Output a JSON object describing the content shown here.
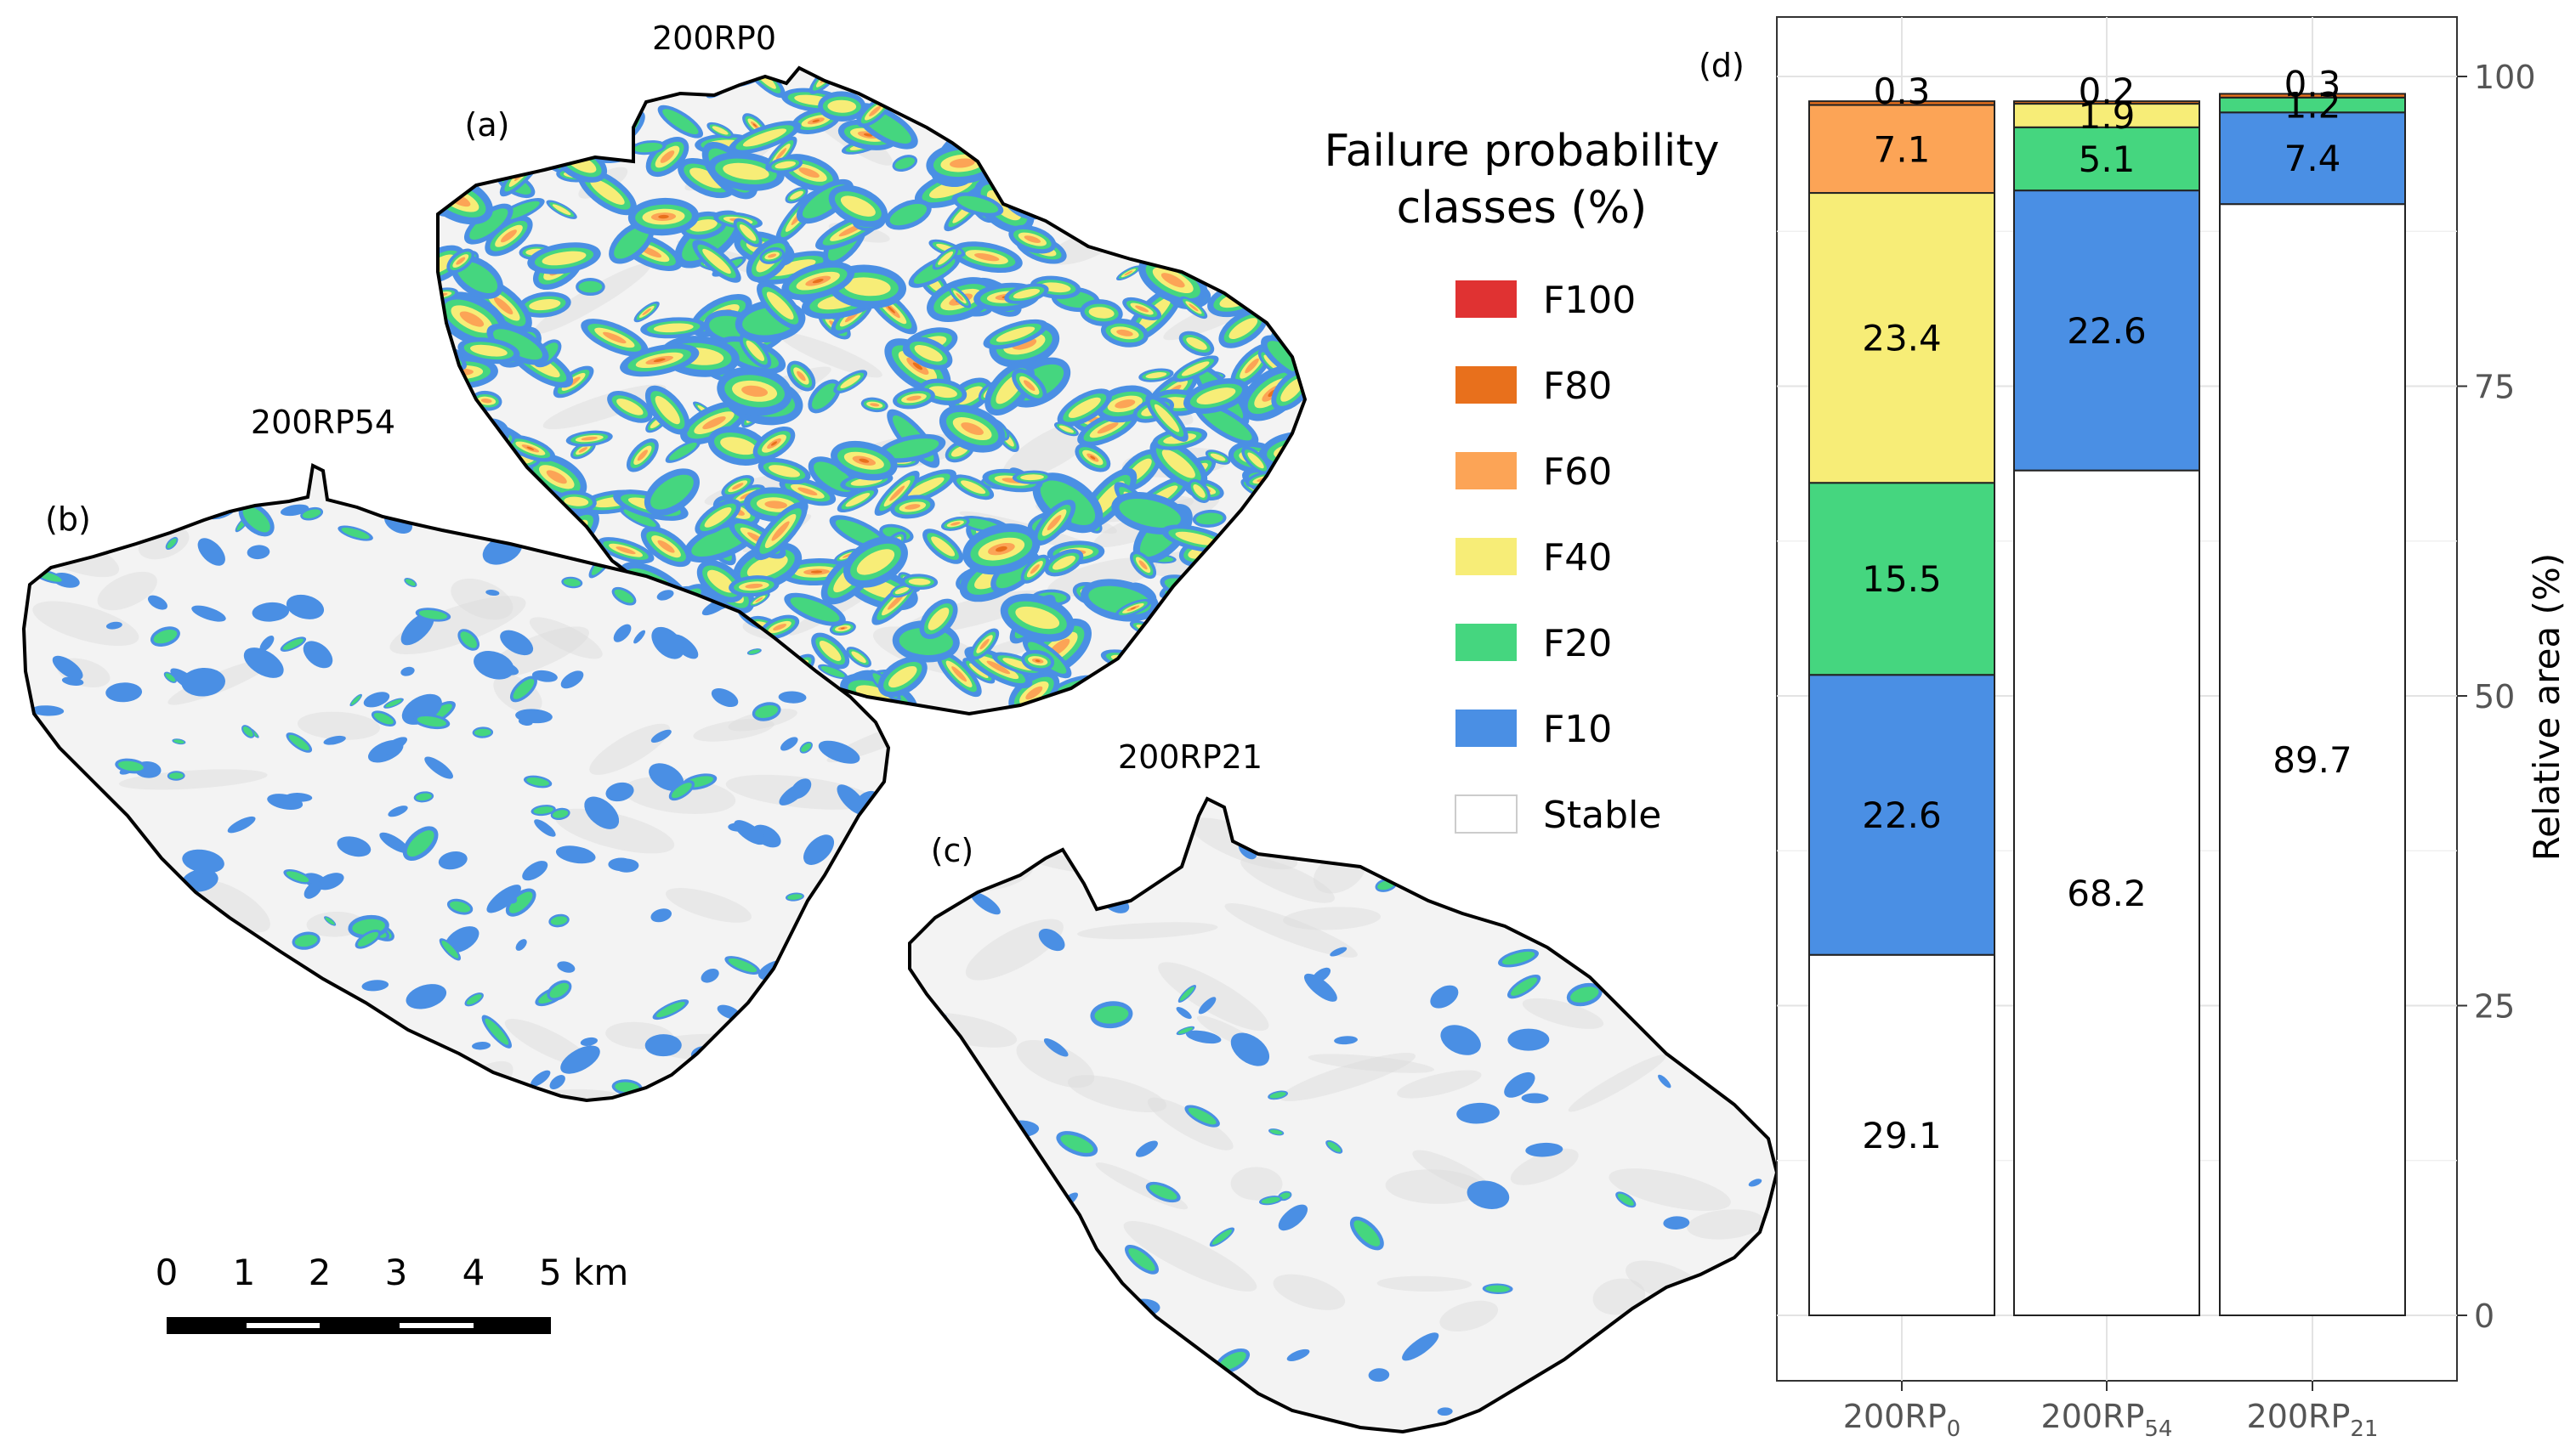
{
  "maps": [
    {
      "id": "a",
      "panel_label": "(a)",
      "title": "200RP0",
      "density": 1.0
    },
    {
      "id": "b",
      "panel_label": "(b)",
      "title": "200RP54",
      "density": 0.42
    },
    {
      "id": "c",
      "panel_label": "(c)",
      "title": "200RP21",
      "density": 0.18
    }
  ],
  "scalebar": {
    "ticks": [
      "0",
      "1",
      "2",
      "3",
      "4",
      "5 km"
    ]
  },
  "legend": {
    "title_line1": "Failure probability",
    "title_line2": "classes (%)",
    "items": [
      {
        "label": "F100",
        "color": "#e03232"
      },
      {
        "label": "F80",
        "color": "#e8701c"
      },
      {
        "label": "F60",
        "color": "#fca456"
      },
      {
        "label": "F40",
        "color": "#f7ed77"
      },
      {
        "label": "F20",
        "color": "#45d67f"
      },
      {
        "label": "F10",
        "color": "#4a8fe4"
      },
      {
        "label": "Stable",
        "color": "#ffffff"
      }
    ]
  },
  "chart_data": {
    "type": "bar",
    "stacked": true,
    "panel_label": "(d)",
    "categories": [
      "200RP0",
      "200RP54",
      "200RP21"
    ],
    "category_labels": [
      {
        "base": "200RP",
        "sub": "0"
      },
      {
        "base": "200RP",
        "sub": "54"
      },
      {
        "base": "200RP",
        "sub": "21"
      }
    ],
    "series": [
      {
        "name": "Stable",
        "color": "#ffffff",
        "values": [
          29.1,
          68.2,
          89.7
        ]
      },
      {
        "name": "F10",
        "color": "#4a8fe4",
        "values": [
          22.6,
          22.6,
          7.4
        ]
      },
      {
        "name": "F20",
        "color": "#45d67f",
        "values": [
          15.5,
          5.1,
          1.2
        ]
      },
      {
        "name": "F40",
        "color": "#f7ed77",
        "values": [
          23.4,
          1.9,
          0
        ]
      },
      {
        "name": "F60",
        "color": "#fca456",
        "values": [
          7.1,
          0,
          0
        ]
      },
      {
        "name": "F80",
        "color": "#e8701c",
        "values": [
          0.3,
          0.2,
          0.3
        ]
      },
      {
        "name": "F100",
        "color": "#e03232",
        "values": [
          0,
          0,
          0
        ]
      }
    ],
    "data_labels": [
      {
        "bar": 0,
        "value": "29.1",
        "series": "Stable"
      },
      {
        "bar": 0,
        "value": "22.6",
        "series": "F10"
      },
      {
        "bar": 0,
        "value": "15.5",
        "series": "F20"
      },
      {
        "bar": 0,
        "value": "23.4",
        "series": "F40"
      },
      {
        "bar": 0,
        "value": "7.1",
        "series": "F60"
      },
      {
        "bar": 0,
        "value": "0.3",
        "series": "F80"
      },
      {
        "bar": 1,
        "value": "68.2",
        "series": "Stable"
      },
      {
        "bar": 1,
        "value": "22.6",
        "series": "F10"
      },
      {
        "bar": 1,
        "value": "5.1",
        "series": "F20"
      },
      {
        "bar": 1,
        "value": "1.9",
        "series": "F40"
      },
      {
        "bar": 1,
        "value": "0.2",
        "series": "F80"
      },
      {
        "bar": 2,
        "value": "89.7",
        "series": "Stable"
      },
      {
        "bar": 2,
        "value": "7.4",
        "series": "F10"
      },
      {
        "bar": 2,
        "value": "1.2",
        "series": "F20"
      },
      {
        "bar": 2,
        "value": "0.3",
        "series": "F80"
      }
    ],
    "ylabel": "Relative area (%)",
    "y_ticks": [
      "0",
      "25",
      "50",
      "75",
      "100"
    ],
    "ylim": [
      0,
      100
    ],
    "y_axis_side": "right",
    "grid": true
  }
}
